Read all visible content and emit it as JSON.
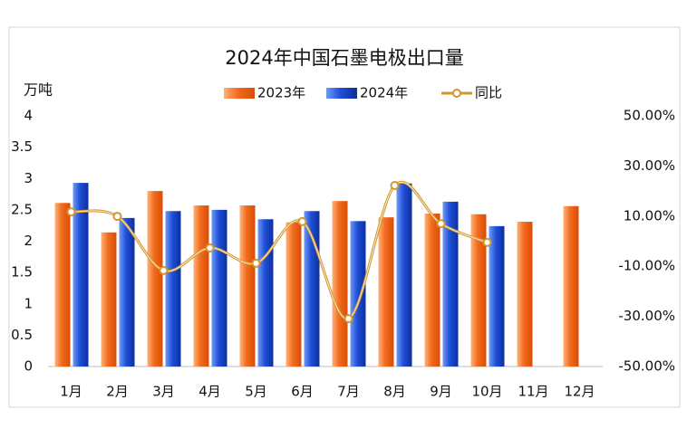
{
  "chart_data": {
    "type": "bar",
    "title": "2024年中国石墨电极出口量",
    "y_label": "万吨",
    "categories": [
      "1月",
      "2月",
      "3月",
      "4月",
      "5月",
      "6月",
      "7月",
      "8月",
      "9月",
      "10月",
      "11月",
      "12月"
    ],
    "series": [
      {
        "name": "2023年",
        "type": "bar",
        "color": "#f26b1d",
        "values": [
          2.61,
          2.14,
          2.8,
          2.57,
          2.57,
          2.3,
          2.64,
          2.38,
          2.44,
          2.43,
          2.31,
          2.56
        ]
      },
      {
        "name": "2024年",
        "type": "bar",
        "color": "#1f4fd8",
        "values": [
          2.93,
          2.37,
          2.48,
          2.5,
          2.35,
          2.48,
          2.32,
          2.92,
          2.63,
          2.24,
          null,
          null
        ]
      },
      {
        "name": "同比",
        "type": "line",
        "axis": "y2",
        "color": "#d4962c",
        "values": [
          11.7,
          9.9,
          -11.7,
          -2.7,
          -8.8,
          7.8,
          -30.9,
          22.2,
          7.0,
          -0.5,
          null,
          null
        ]
      }
    ],
    "ylim": [
      0,
      4
    ],
    "yticks": [
      0,
      0.5,
      1,
      1.5,
      2,
      2.5,
      3,
      3.5,
      4
    ],
    "y2lim": [
      -50,
      50
    ],
    "y2ticks": [
      {
        "value": -50,
        "label": "-50.00%"
      },
      {
        "value": -30,
        "label": "-30.00%"
      },
      {
        "value": -10,
        "label": "-10.00%"
      },
      {
        "value": 10,
        "label": "10.00%"
      },
      {
        "value": 30,
        "label": "30.00%"
      },
      {
        "value": 50,
        "label": "50.00%"
      }
    ],
    "grid": false,
    "legend": "top"
  }
}
